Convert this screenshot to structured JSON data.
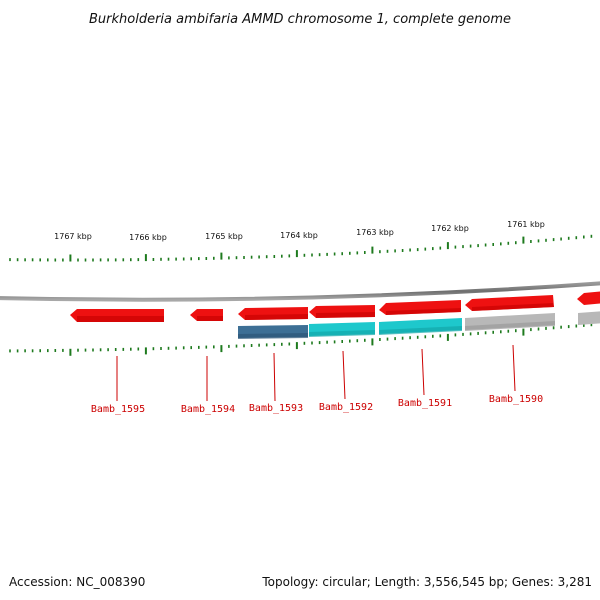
{
  "title": "Burkholderia ambifaria AMMD chromosome 1, complete genome",
  "scale_labels": [
    "1767 kbp",
    "1766 kbp",
    "1765 kbp",
    "1764 kbp",
    "1763 kbp",
    "1762 kbp",
    "1761 kbp"
  ],
  "genes": [
    {
      "name": "Bamb_1595",
      "strand": "reverse"
    },
    {
      "name": "Bamb_1594",
      "strand": "reverse"
    },
    {
      "name": "Bamb_1593",
      "strand": "reverse"
    },
    {
      "name": "Bamb_1592",
      "strand": "reverse"
    },
    {
      "name": "Bamb_1591",
      "strand": "reverse"
    },
    {
      "name": "Bamb_1590",
      "strand": "reverse"
    }
  ],
  "footer": {
    "accession": "Accession: NC_008390",
    "summary": "Topology: circular; Length: 3,556,545 bp; Genes: 3,281"
  },
  "colors": {
    "gene": "#ee1111",
    "blue_band": "#3d6f95",
    "cyan_band": "#1ec8cc",
    "gray_band": "#b8b8b8",
    "tick": "#1e7a1e",
    "backbone": "#7a7a7a",
    "label": "#cc0000"
  }
}
